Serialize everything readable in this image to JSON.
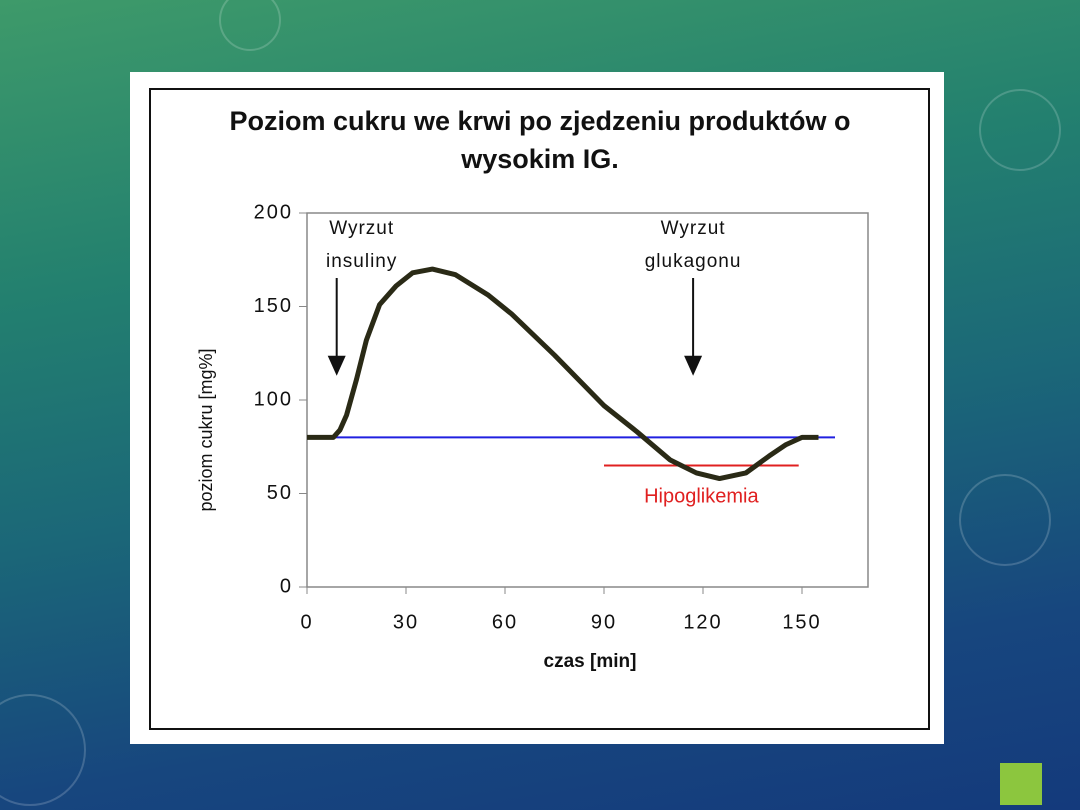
{
  "chart_data": {
    "type": "line",
    "title": "Poziom cukru we krwi po zjedzeniu produktów o wysokim IG.",
    "x_label": "czas [min]",
    "y_label": "poziom cukru [mg%]",
    "x": [
      0,
      8,
      10,
      12,
      15,
      18,
      22,
      27,
      32,
      38,
      45,
      55,
      62,
      75,
      90,
      100,
      110,
      118,
      125,
      133,
      140,
      145,
      150,
      155
    ],
    "series": [
      {
        "color": "#2a2a16",
        "values": [
          80,
          80,
          84,
          92,
          111,
          132,
          151,
          161,
          168,
          170,
          167,
          156,
          146,
          124,
          97,
          83,
          68,
          61,
          58,
          61,
          70,
          76,
          80,
          80
        ]
      }
    ],
    "xlim": [
      0,
      170
    ],
    "ylim": [
      0,
      200
    ],
    "xticks": [
      0,
      30,
      60,
      90,
      120,
      150
    ],
    "yticks": [
      0,
      50,
      100,
      150,
      200
    ],
    "reference_lines": [
      {
        "value": 80,
        "from": 0,
        "to": 160,
        "color": "#2020e0"
      },
      {
        "value": 65,
        "from": 90,
        "to": 149,
        "color": "#e02020",
        "label": "Hipoglikemia"
      }
    ],
    "annotations": [
      {
        "lines": [
          "Wyrzut",
          "insuliny"
        ],
        "x": 9,
        "y": 113
      },
      {
        "lines": [
          "Wyrzut",
          "glukagonu"
        ],
        "x": 117,
        "y": 113
      }
    ]
  }
}
